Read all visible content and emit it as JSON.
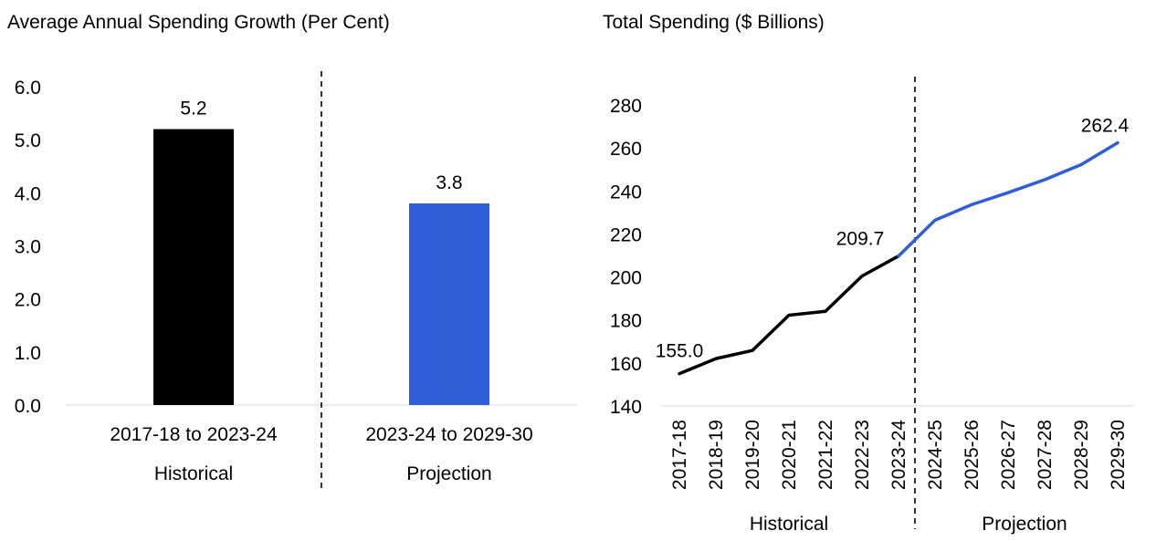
{
  "chart_data": [
    {
      "type": "bar",
      "title": "Average Annual Spending Growth (Per Cent)",
      "categories": [
        "2017-18 to 2023-24",
        "2023-24 to 2029-30"
      ],
      "groups": [
        "Historical",
        "Projection"
      ],
      "values": [
        5.2,
        3.8
      ],
      "data_labels": [
        "5.2",
        "3.8"
      ],
      "ylim": [
        0,
        6
      ],
      "yticks": [
        "0.0",
        "1.0",
        "2.0",
        "3.0",
        "4.0",
        "5.0",
        "6.0"
      ],
      "colors": [
        "#000000",
        "#2f5ed6"
      ],
      "grid": false
    },
    {
      "type": "line",
      "title": "Total Spending ($ Billions)",
      "x": [
        "2017-18",
        "2018-19",
        "2019-20",
        "2020-21",
        "2021-22",
        "2022-23",
        "2023-24",
        "2024-25",
        "2025-26",
        "2026-27",
        "2027-28",
        "2028-29",
        "2029-30"
      ],
      "values": [
        155.0,
        162.0,
        165.8,
        182.2,
        184.0,
        200.4,
        209.7,
        226.4,
        233.6,
        239.2,
        245.2,
        252.2,
        262.4
      ],
      "historical_count": 7,
      "groups": [
        "Historical",
        "Projection"
      ],
      "annotations": [
        {
          "index": 0,
          "text": "155.0"
        },
        {
          "index": 6,
          "text": "209.7"
        },
        {
          "index": 12,
          "text": "262.4"
        }
      ],
      "ylim": [
        140,
        280
      ],
      "yticks": [
        "140",
        "160",
        "180",
        "200",
        "220",
        "240",
        "260",
        "280"
      ],
      "colors": {
        "historical": "#000000",
        "projection": "#2f5ed6"
      },
      "grid": false
    }
  ]
}
